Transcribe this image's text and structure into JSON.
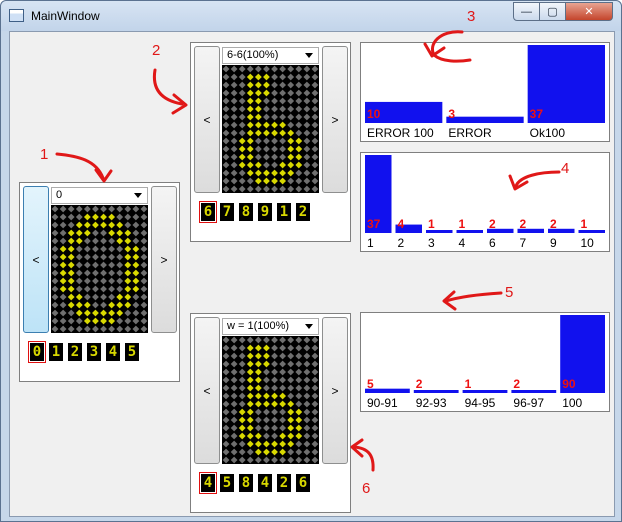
{
  "window": {
    "title": "MainWindow",
    "controls": {
      "minimize": "—",
      "maximize": "▢",
      "close": "✕"
    }
  },
  "colors": {
    "bar": "#1111ee",
    "count": "#ee1111",
    "annotation": "#e01818",
    "on_pixel": "#d8d800",
    "off_pixel": "#6f6f6f"
  },
  "panels": [
    {
      "id": "p1",
      "combo": "0",
      "prev_label": "<",
      "next_label": ">",
      "thumbs": [
        "0",
        "1",
        "2",
        "3",
        "4",
        "5"
      ],
      "selected": 0,
      "glyph": "0"
    },
    {
      "id": "p2",
      "combo": "6-6(100%)",
      "prev_label": "<",
      "next_label": ">",
      "thumbs": [
        "6",
        "7",
        "8",
        "9",
        "1",
        "2"
      ],
      "selected": 0,
      "glyph": "6"
    },
    {
      "id": "p3",
      "combo": "w = 1(100%)",
      "prev_label": "<",
      "next_label": ">",
      "thumbs": [
        "4",
        "5",
        "8",
        "4",
        "2",
        "6"
      ],
      "selected": 0,
      "glyph": "6"
    }
  ],
  "histograms": [
    {
      "id": "h1",
      "chart_data": {
        "type": "bar",
        "categories": [
          "ERROR 100",
          "ERROR",
          "Ok100"
        ],
        "values": [
          10,
          3,
          37
        ]
      }
    },
    {
      "id": "h2",
      "chart_data": {
        "type": "bar",
        "categories": [
          "1",
          "2",
          "3",
          "4",
          "6",
          "7",
          "9",
          "10"
        ],
        "values": [
          37,
          4,
          1,
          1,
          2,
          2,
          2,
          1
        ]
      }
    },
    {
      "id": "h3",
      "chart_data": {
        "type": "bar",
        "categories": [
          "90-91",
          "92-93",
          "94-95",
          "96-97",
          "100"
        ],
        "values": [
          5,
          2,
          1,
          2,
          90
        ]
      }
    }
  ],
  "annotations": [
    "1",
    "2",
    "3",
    "4",
    "5",
    "6"
  ]
}
